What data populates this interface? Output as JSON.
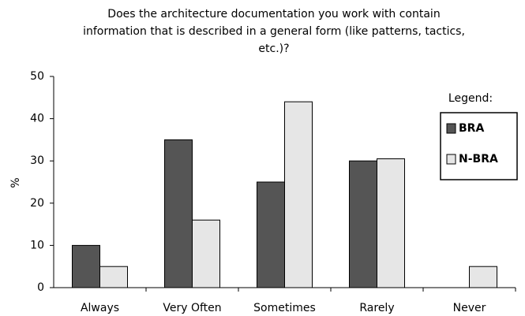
{
  "chart_data": {
    "type": "bar",
    "title": [
      "Does the architecture documentation you work with contain",
      "information that is described in a general form (like patterns, tactics,",
      "etc.)?"
    ],
    "y_label": "%",
    "legend_title": "Legend:",
    "categories": [
      "Always",
      "Very Often",
      "Sometimes",
      "Rarely",
      "Never"
    ],
    "series": [
      {
        "name": "BRA",
        "color": "#555555",
        "values": [
          10,
          35,
          25,
          30,
          0
        ]
      },
      {
        "name": "N-BRA",
        "color": "#e6e6e6",
        "values": [
          5,
          16,
          44,
          30.5,
          5
        ]
      }
    ],
    "ylim": [
      0,
      50
    ],
    "yticks": [
      0,
      10,
      20,
      30,
      40,
      50
    ],
    "grid": false,
    "legend": "upper right"
  }
}
